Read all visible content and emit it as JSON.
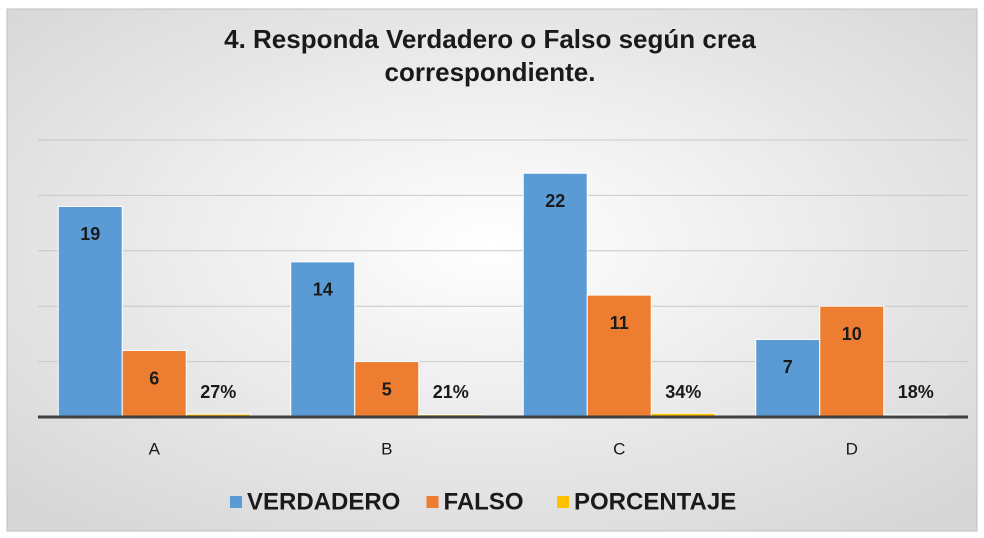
{
  "chart_data": {
    "type": "bar",
    "title": [
      "4. Responda Verdadero o Falso según crea",
      "correspondiente."
    ],
    "categories": [
      "A",
      "B",
      "C",
      "D"
    ],
    "series": [
      {
        "name": "VERDADERO",
        "color": "#5b9bd5",
        "values": [
          19,
          14,
          22,
          7
        ]
      },
      {
        "name": "FALSO",
        "color": "#ed7d31",
        "values": [
          6,
          5,
          11,
          10
        ]
      },
      {
        "name": "PORCENTAJE",
        "color": "#ffc000",
        "values": [
          0.27,
          0.21,
          0.34,
          0.18
        ],
        "value_labels": [
          "27%",
          "21%",
          "34%",
          "18%"
        ]
      }
    ],
    "ylim": [
      0,
      25
    ],
    "yticks": [
      0,
      5,
      10,
      15,
      20,
      25
    ],
    "grid": true,
    "legend": "bottom"
  }
}
